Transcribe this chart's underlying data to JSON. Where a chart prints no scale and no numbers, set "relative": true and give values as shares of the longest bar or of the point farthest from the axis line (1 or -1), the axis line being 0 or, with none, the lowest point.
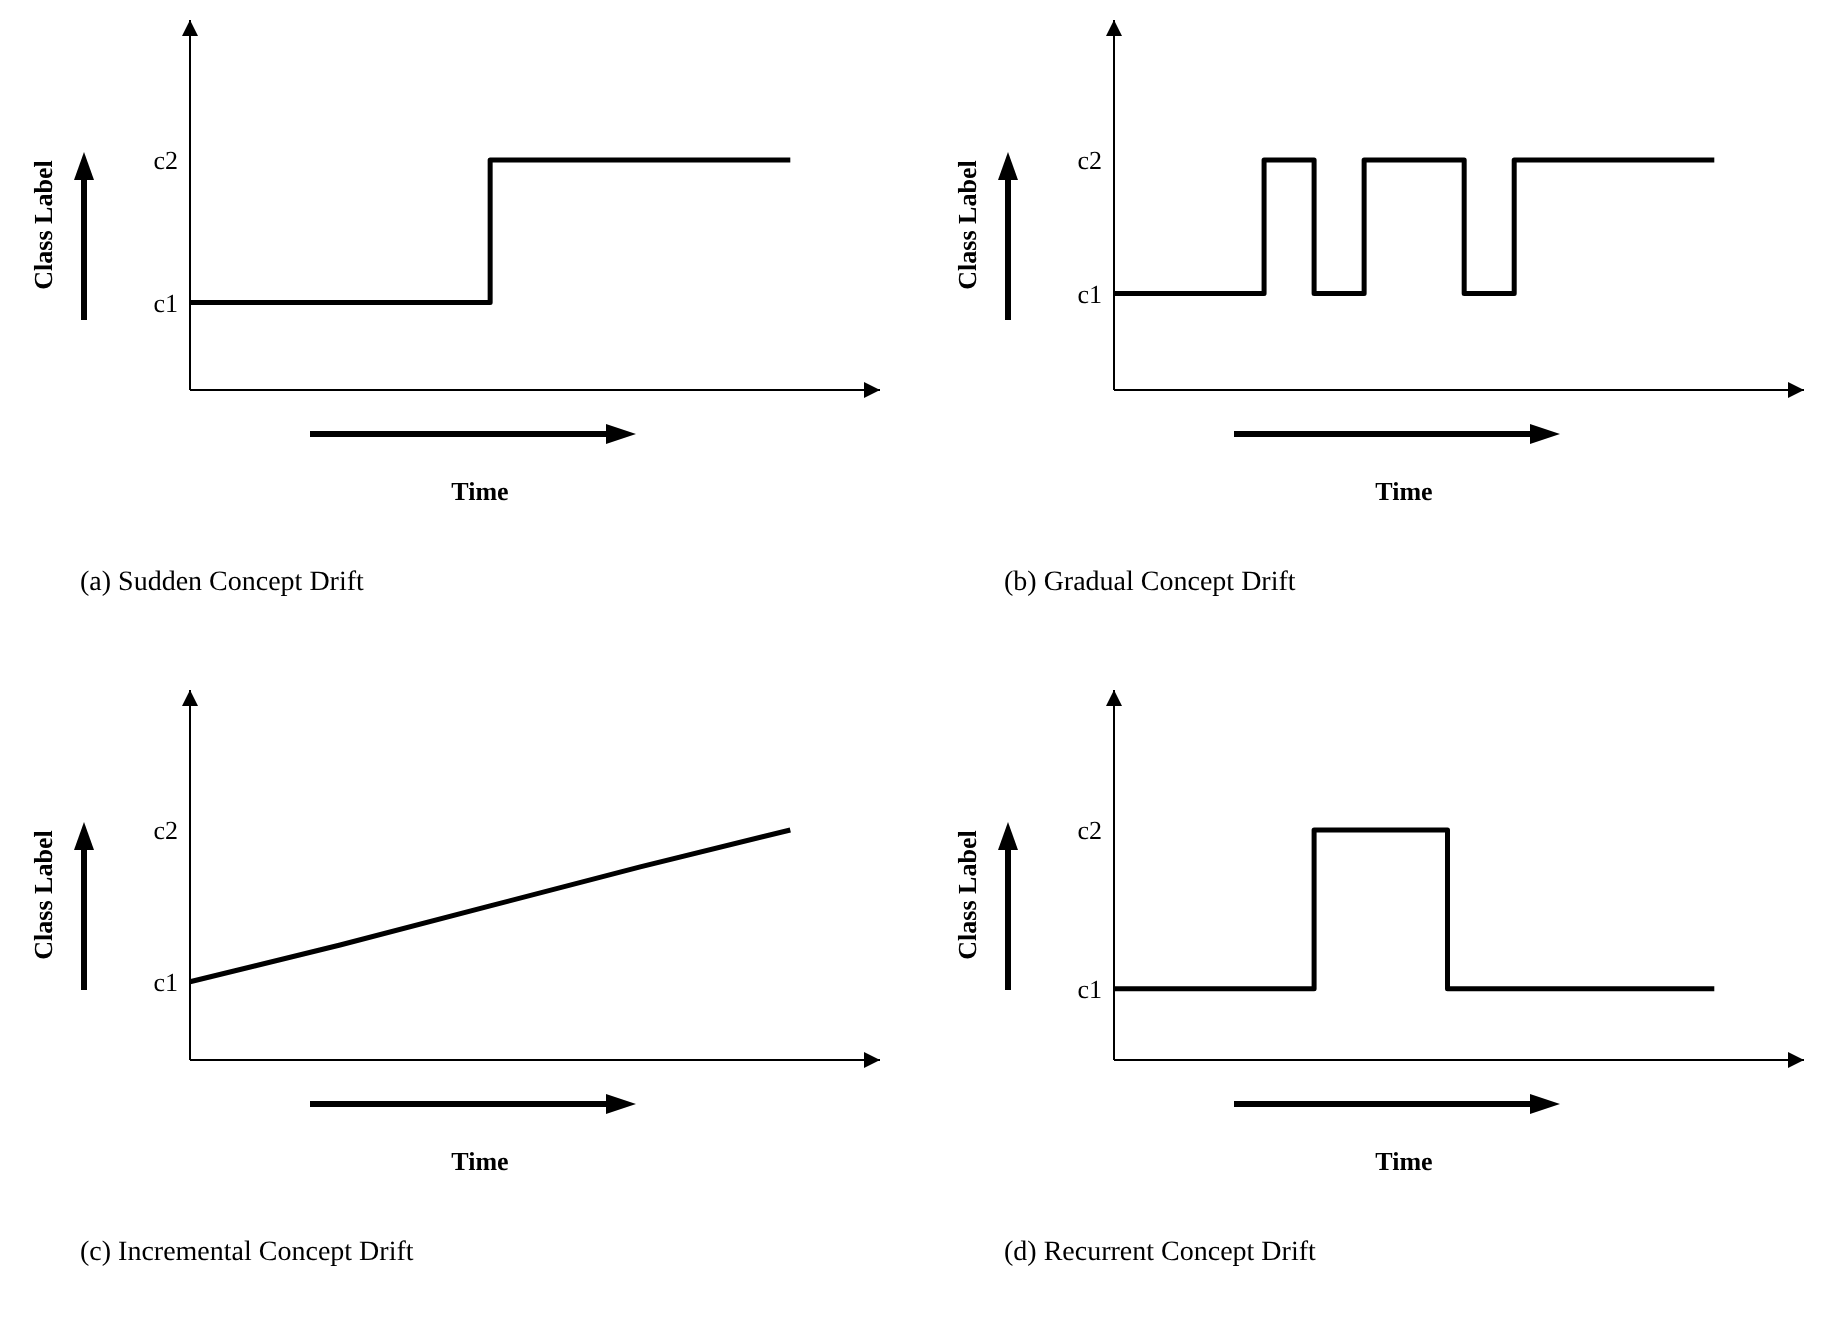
{
  "chart_data": [
    {
      "type": "step",
      "title": "(a)  Sudden Concept Drift",
      "xlabel": "Time",
      "ylabel": "Class Label",
      "categories": [
        null,
        null,
        null
      ],
      "values": [
        0.38,
        1,
        1
      ],
      "color": "#000000",
      "relative": true,
      "annotations": [
        "c1",
        "c2"
      ]
    },
    {
      "type": "step",
      "title": "(b)  Gradual Concept Drift",
      "xlabel": "Time",
      "ylabel": "Class Label",
      "categories": [
        null,
        null,
        null,
        null,
        null,
        null,
        null,
        null,
        null,
        null,
        null,
        null,
        null
      ],
      "values": [
        0.42,
        0.42,
        0.42,
        1,
        0.42,
        1,
        1,
        0.42,
        1,
        1,
        1,
        1,
        1
      ],
      "color": "#000000",
      "relative": true,
      "annotations": [
        "c1",
        "c2"
      ]
    },
    {
      "type": "line",
      "title": "(c)  Incremental Concept Drift",
      "xlabel": "Time",
      "ylabel": "Class Label",
      "categories": [
        null,
        null,
        null,
        null,
        null
      ],
      "values": [
        0.34,
        0.5,
        0.67,
        0.84,
        1
      ],
      "color": "#000000",
      "relative": true,
      "annotations": [
        "c1",
        "c2"
      ]
    },
    {
      "type": "step",
      "title": "(d)  Recurrent Concept Drift",
      "xlabel": "Time",
      "ylabel": "Class Label",
      "categories": [
        null,
        null,
        null,
        null,
        null,
        null,
        null,
        null,
        null,
        null
      ],
      "values": [
        0.31,
        0.31,
        0.31,
        1,
        1,
        0.31,
        0.31,
        0.31,
        0.31,
        0.31
      ],
      "color": "#000000",
      "relative": true,
      "annotations": [
        "c1",
        "c2"
      ]
    }
  ]
}
